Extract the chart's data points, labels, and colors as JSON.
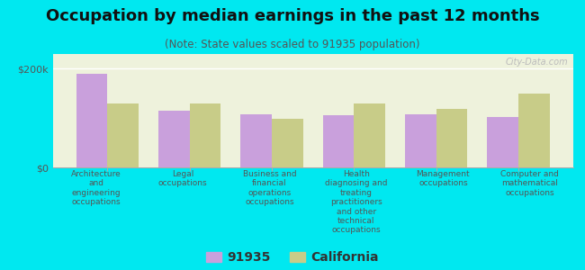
{
  "title": "Occupation by median earnings in the past 12 months",
  "subtitle": "(Note: State values scaled to 91935 population)",
  "background_outer": "#00e8f0",
  "background_inner": "#eef2dc",
  "categories": [
    "Architecture\nand\nengineering\noccupations",
    "Legal\noccupations",
    "Business and\nfinancial\noperations\noccupations",
    "Health\ndiagnosing and\ntreating\npractitioners\nand other\ntechnical\noccupations",
    "Management\noccupations",
    "Computer and\nmathematical\noccupations"
  ],
  "values_91935": [
    190000,
    115000,
    108000,
    105000,
    107000,
    103000
  ],
  "values_california": [
    130000,
    130000,
    98000,
    130000,
    118000,
    150000
  ],
  "color_91935": "#c9a0dc",
  "color_california": "#c8cc88",
  "ylabel_ticks": [
    "$0",
    "$200k"
  ],
  "ytick_values": [
    0,
    200000
  ],
  "ylim": [
    0,
    230000
  ],
  "legend_labels": [
    "91935",
    "California"
  ],
  "watermark": "City-Data.com",
  "title_fontsize": 13,
  "subtitle_fontsize": 8.5,
  "tick_fontsize": 8,
  "legend_fontsize": 10
}
